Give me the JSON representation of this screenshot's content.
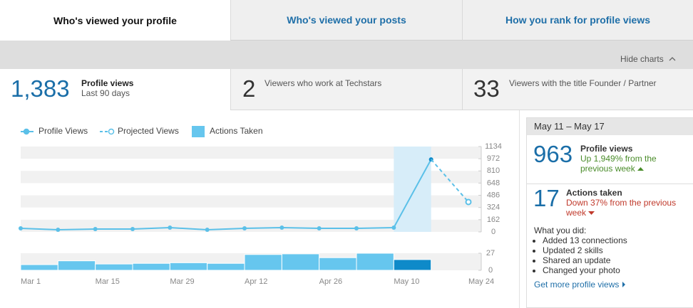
{
  "tabs": [
    "Who's viewed your profile",
    "Who's viewed your posts",
    "How you rank for profile views"
  ],
  "hide_charts": "Hide charts",
  "stats": [
    {
      "value": "1,383",
      "label": "Profile views",
      "sublabel": "Last 90 days"
    },
    {
      "value": "2",
      "label": "Viewers who work at Techstars"
    },
    {
      "value": "33",
      "label": "Viewers with the title Founder / Partner"
    }
  ],
  "chart_data": {
    "type": "line",
    "categories": [
      "Mar 1",
      null,
      "Mar 15",
      null,
      "Mar 29",
      null,
      "Apr 12",
      null,
      "Apr 26",
      null,
      "May 10",
      null,
      "May 24"
    ],
    "series": [
      {
        "name": "Profile Views",
        "color": "#5bc0e8",
        "values": [
          47,
          28,
          38,
          38,
          57,
          28,
          47,
          57,
          47,
          47,
          57,
          963,
          null
        ]
      },
      {
        "name": "Projected Views",
        "color": "#5bc0e8",
        "dashed": true,
        "values": [
          null,
          null,
          null,
          null,
          null,
          null,
          null,
          null,
          null,
          null,
          null,
          963,
          397
        ]
      },
      {
        "name": "Actions Taken",
        "color": "#66c6ee",
        "type": "bar",
        "axis": "y2",
        "values": [
          null,
          9,
          15,
          10,
          11,
          12,
          11,
          25,
          26,
          20,
          27,
          17,
          null
        ]
      }
    ],
    "ylim": [
      0,
      1134
    ],
    "yticks": [
      0,
      162,
      324,
      486,
      648,
      810,
      972,
      1134
    ],
    "y2lim": [
      0,
      27
    ],
    "y2ticks": [
      0,
      27
    ],
    "highlight_index": 11,
    "highlight_color": "#0e8ac9",
    "highlight_band_color": "#d7edf9",
    "legend": "top-left"
  },
  "sidebar": {
    "range": "May 11 – May 17",
    "views_label": "Profile views",
    "views_change": "Up 1,949% from the previous week",
    "actions_label": "Actions taken",
    "actions_change": "Down 37% from the previous week",
    "did_title": "What you did:",
    "did": [
      "Added 13 connections",
      "Updated 2 skills",
      "Shared an update",
      "Changed your photo"
    ],
    "link": "Get more profile views"
  }
}
